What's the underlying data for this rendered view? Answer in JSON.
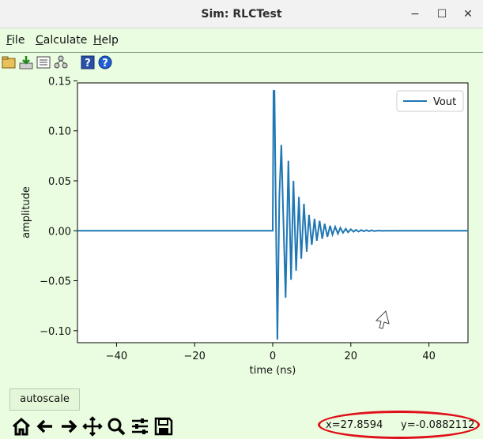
{
  "window": {
    "title": "Sim: RLCTest",
    "controls": {
      "minimize": "−",
      "maximize": "☐",
      "close": "✕"
    }
  },
  "menu": {
    "file": "File",
    "file_key": "F",
    "calculate": "Calculate",
    "calculate_key": "C",
    "help": "Help",
    "help_key": "H"
  },
  "toolbar": {
    "icons": [
      "open-folder-icon",
      "download-icon",
      "list-icon",
      "network-icon",
      "help-book-icon",
      "help-question-icon"
    ]
  },
  "chart_data": {
    "type": "line",
    "xlabel": "time (ns)",
    "ylabel": "amplitude",
    "xlim": [
      -50,
      50
    ],
    "ylim": [
      -0.112,
      0.148
    ],
    "xticks": [
      -40,
      -20,
      0,
      20,
      40
    ],
    "yticks": [
      -0.1,
      -0.05,
      0.0,
      0.05,
      0.1,
      0.15
    ],
    "ytick_labels": [
      "−0.10",
      "−0.05",
      "0.00",
      "0.05",
      "0.10",
      "0.15"
    ],
    "xtick_labels": [
      "−40",
      "−20",
      "0",
      "20",
      "40"
    ],
    "legend": "top-right",
    "series": [
      {
        "name": "Vout",
        "color": "#1f77b4",
        "x": [
          -50,
          0,
          0.2,
          0.45,
          0.7,
          1.2,
          1.7,
          2.2,
          2.6,
          3.3,
          4.0,
          4.7,
          5.3,
          6.0,
          6.7,
          7.3,
          8.0,
          8.7,
          9.3,
          10.0,
          10.7,
          11.3,
          12.0,
          12.7,
          13.3,
          14.0,
          14.7,
          15.3,
          16.0,
          16.7,
          17.3,
          18.0,
          18.7,
          19.3,
          20.0,
          20.7,
          21.3,
          22.0,
          22.7,
          23.3,
          24.0,
          24.7,
          25.3,
          26.0,
          27.0,
          28.0,
          29.0,
          30.0,
          50
        ],
        "y": [
          0,
          0,
          0.14,
          0.14,
          0.05,
          -0.109,
          0.035,
          0.086,
          0.03,
          -0.067,
          0.07,
          -0.049,
          0.05,
          -0.04,
          0.034,
          -0.028,
          0.027,
          -0.021,
          0.016,
          -0.014,
          0.012,
          -0.01,
          0.01,
          -0.008,
          0.007,
          -0.006,
          0.005,
          -0.004,
          0.004,
          -0.003,
          0.003,
          -0.002,
          0.002,
          -0.0015,
          0.0015,
          -0.001,
          0.001,
          -0.0008,
          0.0008,
          -0.0006,
          0.0006,
          -0.0005,
          0.0005,
          -0.0003,
          0.0002,
          -0.0001,
          0.0001,
          0,
          0
        ]
      }
    ]
  },
  "controls": {
    "autoscale_label": "autoscale"
  },
  "navigation": {
    "icons": [
      "home-icon",
      "back-arrow-icon",
      "forward-arrow-icon",
      "pan-icon",
      "zoom-icon",
      "configure-subplots-icon",
      "save-icon"
    ]
  },
  "status": {
    "x_readout": "x=27.8594",
    "y_readout": "y=-0.0882112"
  }
}
